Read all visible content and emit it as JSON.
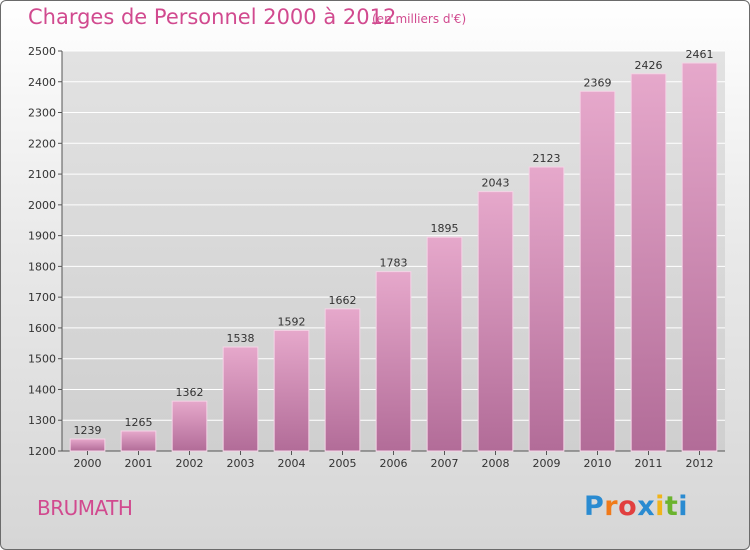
{
  "colors": {
    "accent": "#d14a8f",
    "bar_top": "#e6a8cb",
    "bar_bottom": "#b26c98"
  },
  "header": {
    "title": "Charges de Personnel 2000 à 2012",
    "subtitle": "(en milliers d'€)"
  },
  "footer": {
    "city": "BRUMATH",
    "logo": [
      "P",
      "r",
      "o",
      "x",
      "i",
      "t",
      "i"
    ]
  },
  "chart_data": {
    "type": "bar",
    "title": "Charges de Personnel 2000 à 2012",
    "subtitle": "(en milliers d'€)",
    "xlabel": "",
    "ylabel": "",
    "categories": [
      "2000",
      "2001",
      "2002",
      "2003",
      "2004",
      "2005",
      "2006",
      "2007",
      "2008",
      "2009",
      "2010",
      "2011",
      "2012"
    ],
    "values": [
      1239,
      1265,
      1362,
      1538,
      1592,
      1662,
      1783,
      1895,
      2043,
      2123,
      2369,
      2426,
      2461
    ],
    "ylim": [
      1200,
      2500
    ],
    "yticks": [
      1200,
      1300,
      1400,
      1500,
      1600,
      1700,
      1800,
      1900,
      2000,
      2100,
      2200,
      2300,
      2400,
      2500
    ],
    "grid": true
  }
}
